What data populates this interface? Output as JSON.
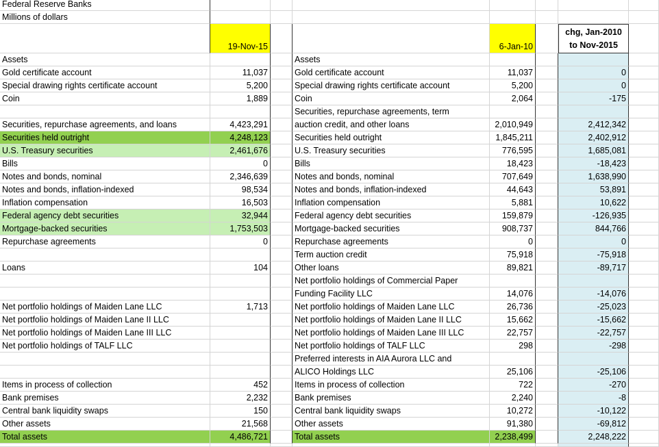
{
  "header": {
    "title": "Federal Reserve Banks",
    "subtitle": "Millions of dollars",
    "left_date": "19-Nov-15",
    "right_date": "6-Jan-10",
    "change_header": [
      "chg, Jan-2010",
      "to Nov-2015"
    ]
  },
  "colors": {
    "date_fill": "#ffff00",
    "change_fill": "#daeef3",
    "dark_green": "#92d050",
    "light_green": "#c6efb4"
  },
  "rows": [
    {
      "left_label": "Assets",
      "right_label": "Assets"
    },
    {
      "left_label": "Gold certificate account",
      "left_value": "11,037",
      "right_label": "Gold certificate account",
      "right_value": "11,037",
      "change": "0"
    },
    {
      "left_label": "Special drawing rights certificate account",
      "left_value": "5,200",
      "right_label": "Special drawing rights certificate account",
      "right_value": "5,200",
      "change": "0"
    },
    {
      "left_label": "Coin",
      "left_value": "1,889",
      "right_label": "Coin",
      "right_value": "2,064",
      "change": "-175"
    },
    {
      "right_label": "Securities, repurchase agreements, term"
    },
    {
      "left_label": "Securities, repurchase agreements, and loans",
      "left_value": "4,423,291",
      "right_label": "auction credit, and other loans",
      "right_value": "2,010,949",
      "change": "2,412,342"
    },
    {
      "left_label": "Securities held outright",
      "left_value": "4,248,123",
      "left_fill": "dark_green",
      "right_label": "Securities held outright",
      "right_value": "1,845,211",
      "change": "2,402,912"
    },
    {
      "left_label": "U.S. Treasury securities",
      "left_value": "2,461,676",
      "left_fill": "light_green",
      "right_label": "U.S. Treasury securities",
      "right_value": "776,595",
      "change": "1,685,081"
    },
    {
      "left_label": "Bills",
      "left_value": "0",
      "right_label": "Bills",
      "right_value": "18,423",
      "change": "-18,423"
    },
    {
      "left_label": "Notes and bonds, nominal",
      "left_value": "2,346,639",
      "right_label": "Notes and bonds, nominal",
      "right_value": "707,649",
      "change": "1,638,990"
    },
    {
      "left_label": "Notes and bonds, inflation-indexed",
      "left_value": "98,534",
      "right_label": "Notes and bonds, inflation-indexed",
      "right_value": "44,643",
      "change": "53,891"
    },
    {
      "left_label": "Inflation compensation",
      "left_value": "16,503",
      "right_label": "Inflation compensation",
      "right_value": "5,881",
      "change": "10,622"
    },
    {
      "left_label": "Federal agency debt securities",
      "left_value": "32,944",
      "left_fill": "light_green",
      "right_label": "Federal agency debt securities",
      "right_value": "159,879",
      "change": "-126,935"
    },
    {
      "left_label": "Mortgage-backed securities",
      "left_value": "1,753,503",
      "left_fill": "light_green",
      "right_label": "Mortgage-backed securities",
      "right_value": "908,737",
      "change": "844,766"
    },
    {
      "left_label": "Repurchase agreements",
      "left_value": "0",
      "right_label": "Repurchase agreements",
      "right_value": "0",
      "change": "0"
    },
    {
      "right_label": "Term auction credit",
      "right_value": "75,918",
      "change": "-75,918"
    },
    {
      "left_label": "Loans",
      "left_value": "104",
      "right_label": "Other loans",
      "right_value": "89,821",
      "change": "-89,717"
    },
    {
      "right_label": "Net portfolio holdings of Commercial Paper"
    },
    {
      "right_label": "Funding Facility LLC",
      "right_value": "14,076",
      "change": "-14,076"
    },
    {
      "left_label": "Net portfolio holdings of Maiden Lane LLC",
      "left_value": "1,713",
      "right_label": "Net portfolio holdings of Maiden Lane LLC",
      "right_value": "26,736",
      "change": "-25,023"
    },
    {
      "left_label": "Net portfolio holdings of Maiden Lane II LLC",
      "right_label": "Net portfolio holdings of Maiden Lane II LLC",
      "right_value": "15,662",
      "change": "-15,662"
    },
    {
      "left_label": "Net portfolio holdings of Maiden Lane III LLC",
      "right_label": "Net portfolio holdings of Maiden Lane III LLC",
      "right_value": "22,757",
      "change": "-22,757"
    },
    {
      "left_label": "Net portfolio holdings of TALF LLC",
      "right_label": "Net portfolio holdings of TALF LLC",
      "right_value": "298",
      "change": "-298"
    },
    {
      "right_label": "Preferred interests in AIA Aurora LLC and"
    },
    {
      "right_label": "ALICO Holdings LLC",
      "right_value": "25,106",
      "change": "-25,106"
    },
    {
      "left_label": "Items in process of collection",
      "left_value": "452",
      "right_label": "Items in process of collection",
      "right_value": "722",
      "change": "-270"
    },
    {
      "left_label": "Bank premises",
      "left_value": "2,232",
      "right_label": "Bank premises",
      "right_value": "2,240",
      "change": "-8"
    },
    {
      "left_label": "Central bank liquidity swaps",
      "left_value": "150",
      "right_label": "Central bank liquidity swaps",
      "right_value": "10,272",
      "change": "-10,122"
    },
    {
      "left_label": "Other assets",
      "left_value": "21,568",
      "right_label": "Other assets",
      "right_value": "91,380",
      "change": "-69,812"
    },
    {
      "left_label": "Total assets",
      "left_value": "4,486,721",
      "left_fill": "dark_green",
      "right_label": "Total assets",
      "right_value": "2,238,499",
      "right_fill": "dark_green",
      "change": "2,248,222"
    }
  ]
}
